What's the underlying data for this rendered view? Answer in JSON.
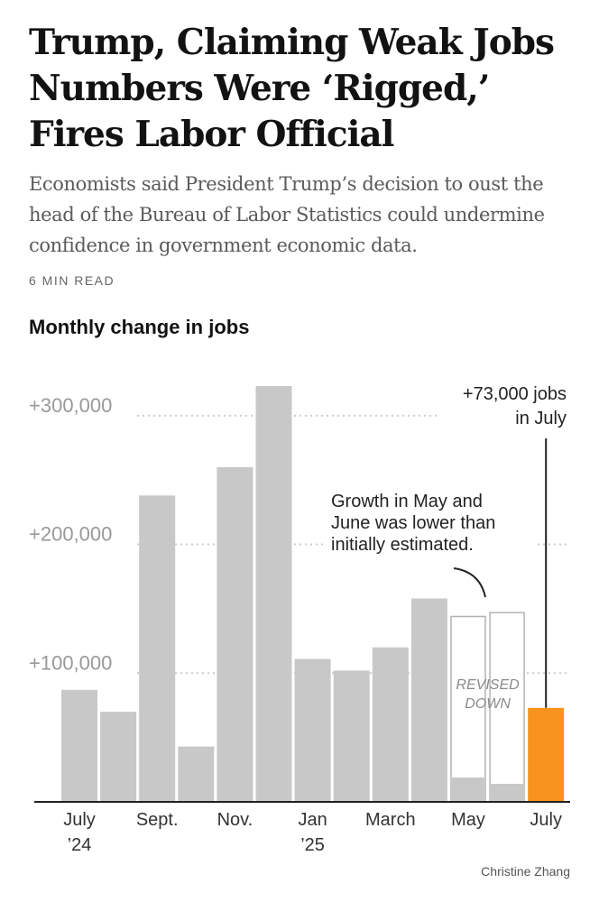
{
  "article": {
    "headline": "Trump, Claiming Weak Jobs Numbers Were ‘Rigged,’ Fires Labor Official",
    "summary": "Economists said President Trump’s decision to oust the head of the Bureau of Labor Statistics could undermine confidence in government economic data.",
    "read_time": "6 MIN READ",
    "credit": "Christine Zhang"
  },
  "chart_data": {
    "type": "bar",
    "title": "Monthly change in jobs",
    "categories": [
      "Jul 2024",
      "Aug 2024",
      "Sep 2024",
      "Oct 2024",
      "Nov 2024",
      "Dec 2024",
      "Jan 2025",
      "Feb 2025",
      "Mar 2025",
      "Apr 2025",
      "May 2025",
      "Jun 2025",
      "Jul 2025"
    ],
    "values": [
      87000,
      70000,
      238000,
      43000,
      260000,
      323000,
      111000,
      102000,
      120000,
      158000,
      19000,
      14000,
      73000
    ],
    "initial_estimates": {
      "May 2025": 144000,
      "Jun 2025": 147000
    },
    "highlight_index": 12,
    "ylim": [
      0,
      330000
    ],
    "y_ticks": [
      {
        "value": 100000,
        "label": "+100,000"
      },
      {
        "value": 200000,
        "label": "+200,000"
      },
      {
        "value": 300000,
        "label": "+300,000"
      }
    ],
    "x_tick_labels": [
      {
        "index": 0,
        "lines": [
          "July",
          "’24"
        ]
      },
      {
        "index": 2,
        "lines": [
          "Sept."
        ]
      },
      {
        "index": 4,
        "lines": [
          "Nov."
        ]
      },
      {
        "index": 6,
        "lines": [
          "Jan",
          "’25"
        ]
      },
      {
        "index": 8,
        "lines": [
          "March"
        ]
      },
      {
        "index": 10,
        "lines": [
          "May"
        ]
      },
      {
        "index": 12,
        "lines": [
          "July"
        ]
      }
    ],
    "annotations": {
      "latest": [
        "+73,000 jobs",
        "in July"
      ],
      "revision_note": [
        "Growth in May and",
        "June was lower than",
        "initially estimated."
      ],
      "revised_label": [
        "REVISED",
        "DOWN"
      ]
    },
    "colors": {
      "bar": "#c8c8c8",
      "highlight": "#f7931e",
      "outline": "#b3b3b3",
      "grid": "#cccccc",
      "tick_text": "#999999",
      "axis_text": "#333333",
      "revised_text": "#8a8a8a",
      "annotation_text": "#222222"
    }
  }
}
